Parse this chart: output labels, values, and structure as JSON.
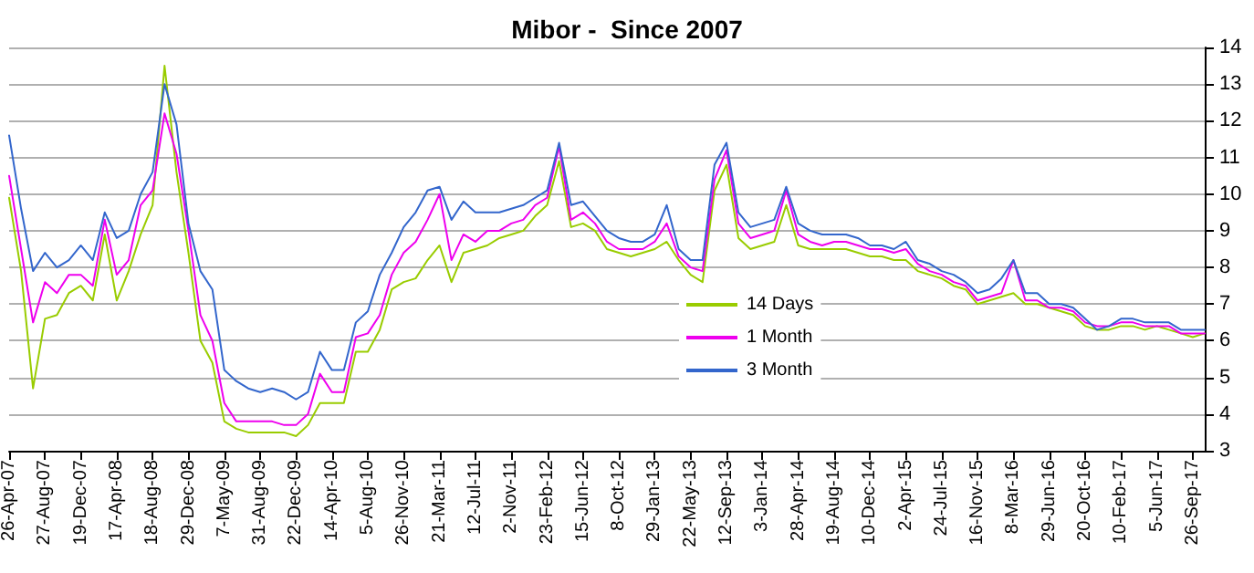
{
  "chart_data": {
    "type": "line",
    "title": "Mibor -  Since 2007",
    "categories": [
      "26-Apr-07",
      null,
      null,
      "27-Aug-07",
      null,
      null,
      "19-Dec-07",
      null,
      null,
      "17-Apr-08",
      null,
      null,
      "18-Aug-08",
      null,
      null,
      "29-Dec-08",
      null,
      null,
      "7-May-09",
      null,
      null,
      "31-Aug-09",
      null,
      null,
      "22-Dec-09",
      null,
      null,
      "14-Apr-10",
      null,
      null,
      "5-Aug-10",
      null,
      null,
      "26-Nov-10",
      null,
      null,
      "21-Mar-11",
      null,
      null,
      "12-Jul-11",
      null,
      null,
      "2-Nov-11",
      null,
      null,
      "23-Feb-12",
      null,
      null,
      "15-Jun-12",
      null,
      null,
      "8-Oct-12",
      null,
      null,
      "29-Jan-13",
      null,
      null,
      "22-May-13",
      null,
      null,
      "12-Sep-13",
      null,
      null,
      "3-Jan-14",
      null,
      null,
      "28-Apr-14",
      null,
      null,
      "19-Aug-14",
      null,
      null,
      "10-Dec-14",
      null,
      null,
      "2-Apr-15",
      null,
      null,
      "24-Jul-15",
      null,
      null,
      "16-Nov-15",
      null,
      null,
      "8-Mar-16",
      null,
      null,
      "29-Jun-16",
      null,
      null,
      "20-Oct-16",
      null,
      null,
      "10-Feb-17",
      null,
      null,
      "5-Jun-17",
      null,
      null,
      "26-Sep-17",
      null
    ],
    "series": [
      {
        "name": "14 Days",
        "color": "#99cc00",
        "values": [
          9.9,
          7.9,
          4.7,
          6.6,
          6.7,
          7.3,
          7.5,
          7.1,
          8.9,
          7.1,
          7.9,
          8.9,
          9.7,
          13.5,
          10.6,
          8.4,
          6.0,
          5.4,
          3.8,
          3.6,
          3.5,
          3.5,
          3.5,
          3.5,
          3.4,
          3.7,
          4.3,
          4.3,
          4.3,
          5.7,
          5.7,
          6.3,
          7.4,
          7.6,
          7.7,
          8.2,
          8.6,
          7.6,
          8.4,
          8.5,
          8.6,
          8.8,
          8.9,
          9.0,
          9.4,
          9.7,
          10.9,
          9.1,
          9.2,
          9.0,
          8.5,
          8.4,
          8.3,
          8.4,
          8.5,
          8.7,
          8.2,
          7.8,
          7.6,
          10.1,
          10.8,
          8.8,
          8.5,
          8.6,
          8.7,
          9.7,
          8.6,
          8.5,
          8.5,
          8.5,
          8.5,
          8.4,
          8.3,
          8.3,
          8.2,
          8.2,
          7.9,
          7.8,
          7.7,
          7.5,
          7.4,
          7.0,
          7.1,
          7.2,
          7.3,
          7.0,
          7.0,
          6.9,
          6.8,
          6.7,
          6.4,
          6.3,
          6.3,
          6.4,
          6.4,
          6.3,
          6.4,
          6.3,
          6.2,
          6.1,
          6.2
        ]
      },
      {
        "name": "1 Month",
        "color": "#ee00ee",
        "values": [
          10.5,
          8.5,
          6.5,
          7.6,
          7.3,
          7.8,
          7.8,
          7.5,
          9.3,
          7.8,
          8.2,
          9.7,
          10.1,
          12.2,
          11.1,
          9.0,
          6.7,
          6.0,
          4.3,
          3.8,
          3.8,
          3.8,
          3.8,
          3.7,
          3.7,
          4.0,
          5.1,
          4.6,
          4.6,
          6.1,
          6.2,
          6.7,
          7.8,
          8.4,
          8.7,
          9.3,
          10.0,
          8.2,
          8.9,
          8.7,
          9.0,
          9.0,
          9.2,
          9.3,
          9.7,
          9.9,
          11.3,
          9.3,
          9.5,
          9.2,
          8.7,
          8.5,
          8.5,
          8.5,
          8.7,
          9.2,
          8.3,
          8.0,
          7.9,
          10.4,
          11.2,
          9.2,
          8.8,
          8.9,
          9.0,
          10.1,
          8.9,
          8.7,
          8.6,
          8.7,
          8.7,
          8.6,
          8.5,
          8.5,
          8.4,
          8.5,
          8.1,
          7.9,
          7.8,
          7.6,
          7.5,
          7.1,
          7.2,
          7.3,
          8.2,
          7.1,
          7.1,
          6.9,
          6.9,
          6.8,
          6.5,
          6.4,
          6.4,
          6.5,
          6.5,
          6.4,
          6.4,
          6.4,
          6.2,
          6.2,
          6.2
        ]
      },
      {
        "name": "3 Month",
        "color": "#3366cc",
        "values": [
          11.6,
          9.6,
          7.9,
          8.4,
          8.0,
          8.2,
          8.6,
          8.2,
          9.5,
          8.8,
          9.0,
          10.0,
          10.6,
          13.0,
          11.9,
          9.2,
          7.9,
          7.4,
          5.2,
          4.9,
          4.7,
          4.6,
          4.7,
          4.6,
          4.4,
          4.6,
          5.7,
          5.2,
          5.2,
          6.5,
          6.8,
          7.8,
          8.4,
          9.1,
          9.5,
          10.1,
          10.2,
          9.3,
          9.8,
          9.5,
          9.5,
          9.5,
          9.6,
          9.7,
          9.9,
          10.1,
          11.4,
          9.7,
          9.8,
          9.4,
          9.0,
          8.8,
          8.7,
          8.7,
          8.9,
          9.7,
          8.5,
          8.2,
          8.2,
          10.8,
          11.4,
          9.5,
          9.1,
          9.2,
          9.3,
          10.2,
          9.2,
          9.0,
          8.9,
          8.9,
          8.9,
          8.8,
          8.6,
          8.6,
          8.5,
          8.7,
          8.2,
          8.1,
          7.9,
          7.8,
          7.6,
          7.3,
          7.4,
          7.7,
          8.2,
          7.3,
          7.3,
          7.0,
          7.0,
          6.9,
          6.6,
          6.3,
          6.4,
          6.6,
          6.6,
          6.5,
          6.5,
          6.5,
          6.3,
          6.3,
          6.3
        ]
      }
    ],
    "ylim": [
      3,
      14
    ],
    "yticks": [
      3,
      4,
      5,
      6,
      7,
      8,
      9,
      10,
      11,
      12,
      13,
      14
    ],
    "grid": "y",
    "legend": "bottom",
    "marker": "none",
    "line_style": "solid"
  }
}
